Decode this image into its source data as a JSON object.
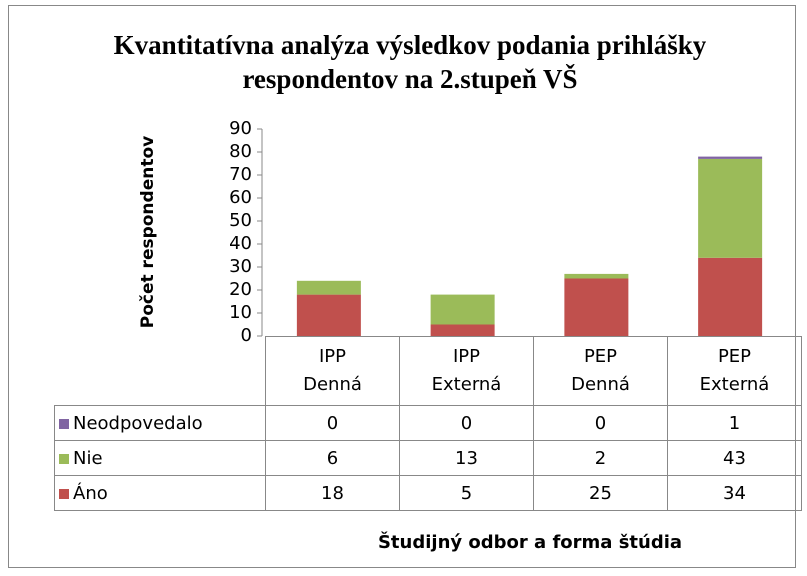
{
  "chart_data": {
    "type": "stacked_bar",
    "title": "Kvantitatívna analýza výsledkov podania prihlášky respondentov na 2.stupeň VŠ",
    "ylabel": "Počet respondentov",
    "xlabel": "Študijný odbor a forma štúdia",
    "categories": [
      "IPP Denná",
      "IPP Externá",
      "PEP Denná",
      "PEP Externá"
    ],
    "series": [
      {
        "name": "Áno",
        "color": "#c0504d",
        "values": [
          18,
          5,
          25,
          34
        ]
      },
      {
        "name": "Nie",
        "color": "#9bbb59",
        "values": [
          6,
          13,
          2,
          43
        ]
      },
      {
        "name": "Neodpovedalo",
        "color": "#8064a2",
        "values": [
          0,
          0,
          0,
          1
        ]
      }
    ],
    "ylim": [
      0,
      90
    ],
    "yticks": [
      0,
      10,
      20,
      30,
      40,
      50,
      60,
      70,
      80,
      90
    ]
  }
}
